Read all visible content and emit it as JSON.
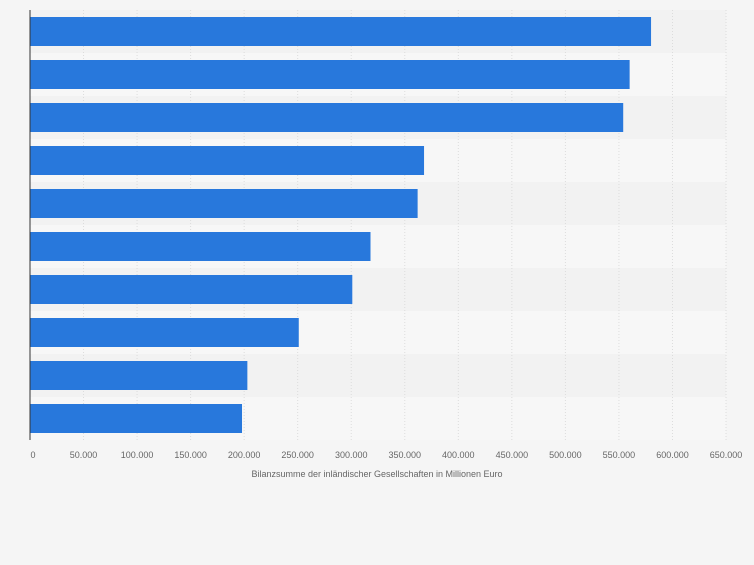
{
  "chart_data": {
    "type": "bar",
    "orientation": "horizontal",
    "title": "",
    "xlabel": "Bilanzsumme der inländischer Gesellschaften in Millionen Euro",
    "ylabel": "",
    "xlim": [
      0,
      650000
    ],
    "x_ticks": [
      0,
      50000,
      100000,
      150000,
      200000,
      250000,
      300000,
      350000,
      400000,
      450000,
      500000,
      550000,
      600000,
      650000
    ],
    "x_tick_labels": [
      "0",
      "50.000",
      "100.000",
      "150.000",
      "200.000",
      "250.000",
      "300.000",
      "350.000",
      "400.000",
      "450.000",
      "500.000",
      "550.000",
      "600.000",
      "650.000"
    ],
    "categories": [
      "",
      "",
      "",
      "",
      "",
      "",
      "",
      "",
      "",
      ""
    ],
    "values": [
      580000,
      560000,
      554000,
      368000,
      362000,
      318000,
      301000,
      251000,
      203000,
      198000
    ],
    "bar_color": "#2878dc",
    "grid": true,
    "legend": "none"
  }
}
